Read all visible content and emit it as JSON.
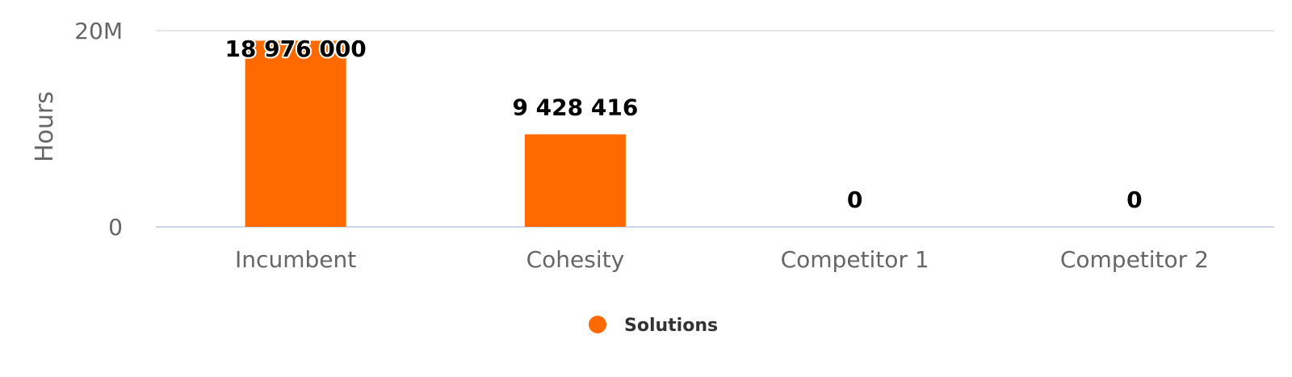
{
  "chart_data": {
    "type": "bar",
    "categories": [
      "Incumbent",
      "Cohesity",
      "Competitor 1",
      "Competitor 2"
    ],
    "series": [
      {
        "name": "Solutions",
        "values": [
          18976000,
          9428416,
          0,
          0
        ],
        "data_labels": [
          "18 976 000",
          "9 428 416",
          "0",
          "0"
        ],
        "color": "#ff6a00"
      }
    ],
    "title": "",
    "xlabel": "",
    "ylabel": "Hours",
    "ylim": [
      0,
      20000000
    ],
    "yticks": [
      {
        "value": 0,
        "label": "0"
      },
      {
        "value": 20000000,
        "label": "20M"
      }
    ],
    "grid": true,
    "legend": {
      "placement": "bottom-center"
    },
    "colors": {
      "bar": "#ff6a00",
      "grid": "#e6e6e6",
      "baseline": "#ccd6eb",
      "tick_text": "#666666",
      "label_text": "#000000"
    }
  }
}
